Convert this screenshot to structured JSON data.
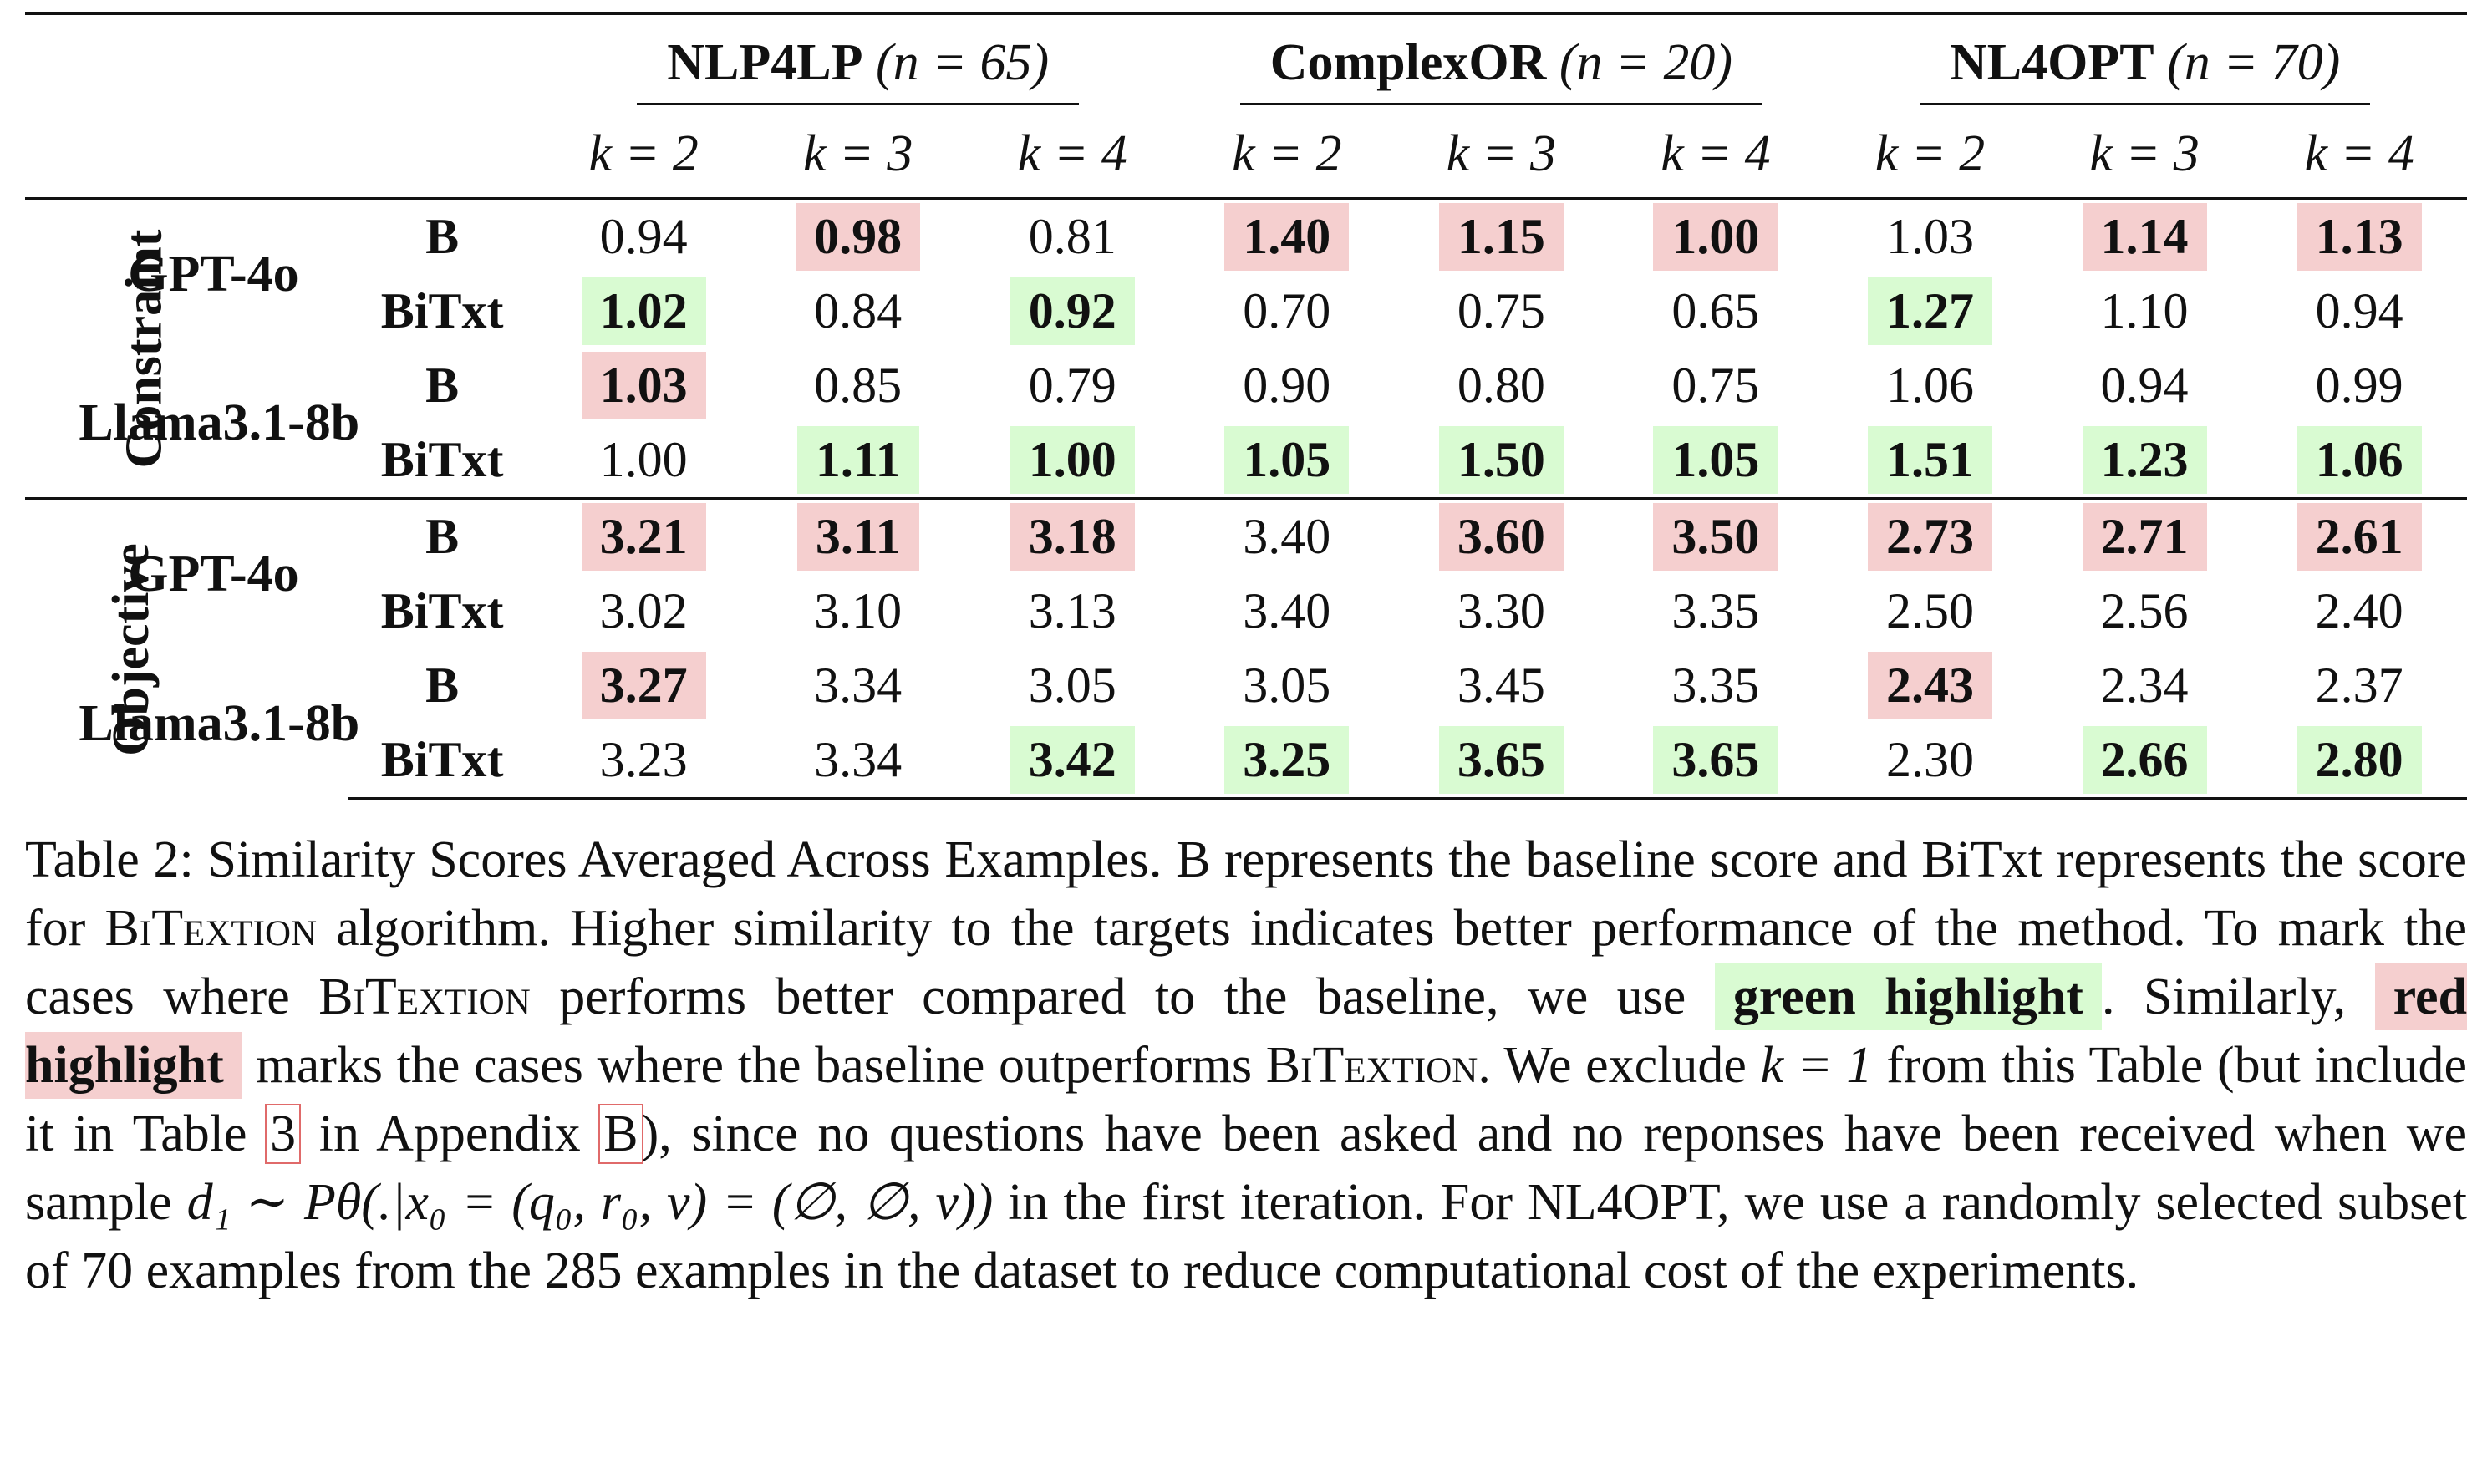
{
  "table": {
    "groups": [
      {
        "name": "NLP4LP",
        "n": "(n = 65)"
      },
      {
        "name": "ComplexOR",
        "n": "(n = 20)"
      },
      {
        "name": "NL4OPT",
        "n": "(n = 70)"
      }
    ],
    "k_labels": [
      "k = 2",
      "k = 3",
      "k = 4",
      "k = 2",
      "k = 3",
      "k = 4",
      "k = 2",
      "k = 3",
      "k = 4"
    ],
    "sections": [
      {
        "label": "Constraint",
        "models": [
          {
            "name": "GPT-4o",
            "rows": [
              {
                "method": "B",
                "values": [
                  "0.94",
                  "0.98",
                  "0.81",
                  "1.40",
                  "1.15",
                  "1.00",
                  "1.03",
                  "1.14",
                  "1.13"
                ],
                "hl": [
                  "",
                  "red",
                  "",
                  "red",
                  "red",
                  "red",
                  "",
                  "red",
                  "red"
                ]
              },
              {
                "method": "BiTxt",
                "values": [
                  "1.02",
                  "0.84",
                  "0.92",
                  "0.70",
                  "0.75",
                  "0.65",
                  "1.27",
                  "1.10",
                  "0.94"
                ],
                "hl": [
                  "green",
                  "",
                  "green",
                  "",
                  "",
                  "",
                  "green",
                  "",
                  ""
                ]
              }
            ]
          },
          {
            "name": "Llama3.1-8b",
            "rows": [
              {
                "method": "B",
                "values": [
                  "1.03",
                  "0.85",
                  "0.79",
                  "0.90",
                  "0.80",
                  "0.75",
                  "1.06",
                  "0.94",
                  "0.99"
                ],
                "hl": [
                  "red",
                  "",
                  "",
                  "",
                  "",
                  "",
                  "",
                  "",
                  ""
                ]
              },
              {
                "method": "BiTxt",
                "values": [
                  "1.00",
                  "1.11",
                  "1.00",
                  "1.05",
                  "1.50",
                  "1.05",
                  "1.51",
                  "1.23",
                  "1.06"
                ],
                "hl": [
                  "",
                  "green",
                  "green",
                  "green",
                  "green",
                  "green",
                  "green",
                  "green",
                  "green"
                ]
              }
            ]
          }
        ]
      },
      {
        "label": "Objective",
        "models": [
          {
            "name": "GPT-4o",
            "rows": [
              {
                "method": "B",
                "values": [
                  "3.21",
                  "3.11",
                  "3.18",
                  "3.40",
                  "3.60",
                  "3.50",
                  "2.73",
                  "2.71",
                  "2.61"
                ],
                "hl": [
                  "red",
                  "red",
                  "red",
                  "",
                  "red",
                  "red",
                  "red",
                  "red",
                  "red"
                ]
              },
              {
                "method": "BiTxt",
                "values": [
                  "3.02",
                  "3.10",
                  "3.13",
                  "3.40",
                  "3.30",
                  "3.35",
                  "2.50",
                  "2.56",
                  "2.40"
                ],
                "hl": [
                  "",
                  "",
                  "",
                  "",
                  "",
                  "",
                  "",
                  "",
                  ""
                ]
              }
            ]
          },
          {
            "name": "Llama3.1-8b",
            "rows": [
              {
                "method": "B",
                "values": [
                  "3.27",
                  "3.34",
                  "3.05",
                  "3.05",
                  "3.45",
                  "3.35",
                  "2.43",
                  "2.34",
                  "2.37"
                ],
                "hl": [
                  "red",
                  "",
                  "",
                  "",
                  "",
                  "",
                  "red",
                  "",
                  ""
                ]
              },
              {
                "method": "BiTxt",
                "values": [
                  "3.23",
                  "3.34",
                  "3.42",
                  "3.25",
                  "3.65",
                  "3.65",
                  "2.30",
                  "2.66",
                  "2.80"
                ],
                "hl": [
                  "",
                  "",
                  "green",
                  "green",
                  "green",
                  "green",
                  "",
                  "green",
                  "green"
                ]
              }
            ]
          }
        ]
      }
    ],
    "highlight_colors": {
      "green": "#d9fbd2",
      "red": "#f5cfcf"
    }
  },
  "caption": {
    "p1": "Table 2: Similarity Scores Averaged Across Examples. B represents the baseline score and BiTxt represents the score for ",
    "bitextion": "BiTextion",
    "p2": " algorithm.  Higher similarity to the targets indicates better performance of the method. To mark the cases where ",
    "p3": " performs better compared to the baseline, we use ",
    "green_chip": "green highlight",
    "p4": ". Similarly, ",
    "red_chip": "red highlight",
    "p5": " marks the cases where the baseline outperforms ",
    "p6": ". We exclude ",
    "k1": "k = 1",
    "p7": " from this Table (but include it in Table ",
    "ref_table": "3",
    "p8": " in Appendix ",
    "ref_appendix": "B",
    "p9": "), since no questions have been asked and no reponses have been received when we sample ",
    "math": "d₁ ∼ Pθ(.|x₀ = (q₀, r₀, v) = (∅, ∅, v))",
    "p10": " in the first iteration.  For NL4OPT, we use a randomly selected subset of 70 examples from the 285 examples in the dataset to reduce computational cost of the experiments."
  }
}
